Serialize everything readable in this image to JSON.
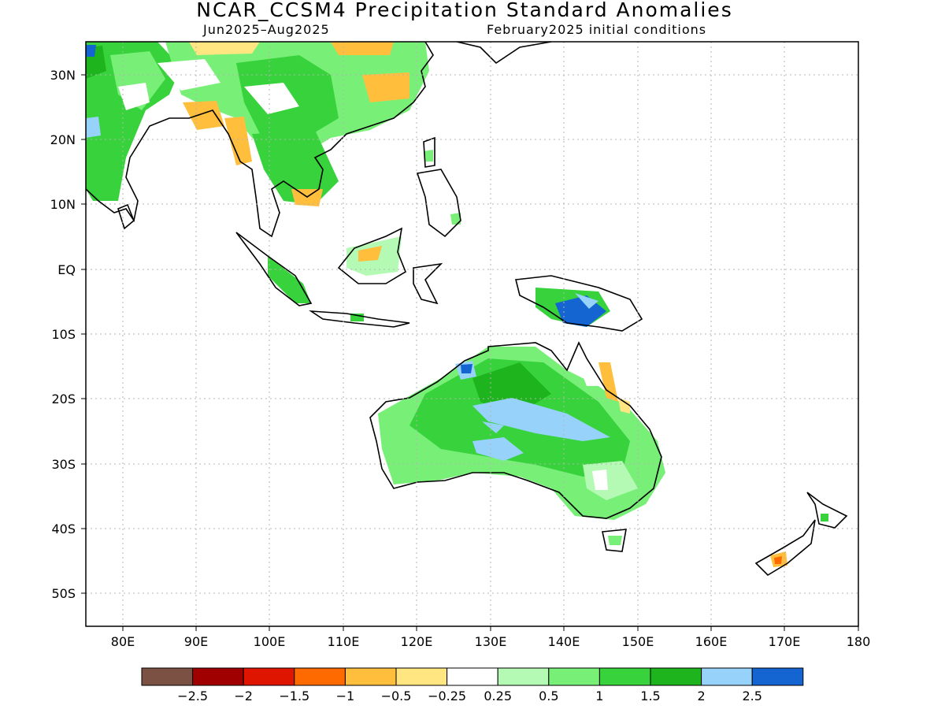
{
  "title": "NCAR_CCSM4 Precipitation Standard Anomalies",
  "period": "Jun2025–Aug2025",
  "initial_conditions": "February2025 initial conditions",
  "lat_labels": [
    "30N",
    "20N",
    "10N",
    "EQ",
    "10S",
    "20S",
    "30S",
    "40S",
    "50S"
  ],
  "lon_labels": [
    "80E",
    "90E",
    "100E",
    "110E",
    "120E",
    "130E",
    "140E",
    "150E",
    "160E",
    "170E",
    "180"
  ],
  "colorbar": {
    "colors": [
      "#7a5143",
      "#a00000",
      "#e01500",
      "#ff6a00",
      "#ffbe3c",
      "#ffe680",
      "#ffffff",
      "#b4fab4",
      "#78f078",
      "#37d23c",
      "#1eb41e",
      "#96d2fa",
      "#1464d2"
    ],
    "labels": [
      "−2.5",
      "−2",
      "−1.5",
      "−1",
      "−0.5",
      "−0.25",
      "0.25",
      "0.5",
      "1",
      "1.5",
      "2",
      "2.5"
    ]
  },
  "chart_data": {
    "type": "heatmap",
    "title": "NCAR_CCSM4 Precipitation Standard Anomalies",
    "subtitle_left": "Jun2025–Aug2025",
    "subtitle_right": "February2025 initial conditions",
    "xlim": [
      75,
      180
    ],
    "ylim": [
      -55,
      35
    ],
    "grid": true,
    "x_ticks": [
      80,
      90,
      100,
      110,
      120,
      130,
      140,
      150,
      160,
      170,
      180
    ],
    "y_ticks": [
      30,
      20,
      10,
      0,
      -10,
      -20,
      -30,
      -40,
      -50
    ],
    "levels": [
      -2.5,
      -2,
      -1.5,
      -1,
      -0.5,
      -0.25,
      0.25,
      0.5,
      1,
      1.5,
      2,
      2.5
    ]
  }
}
